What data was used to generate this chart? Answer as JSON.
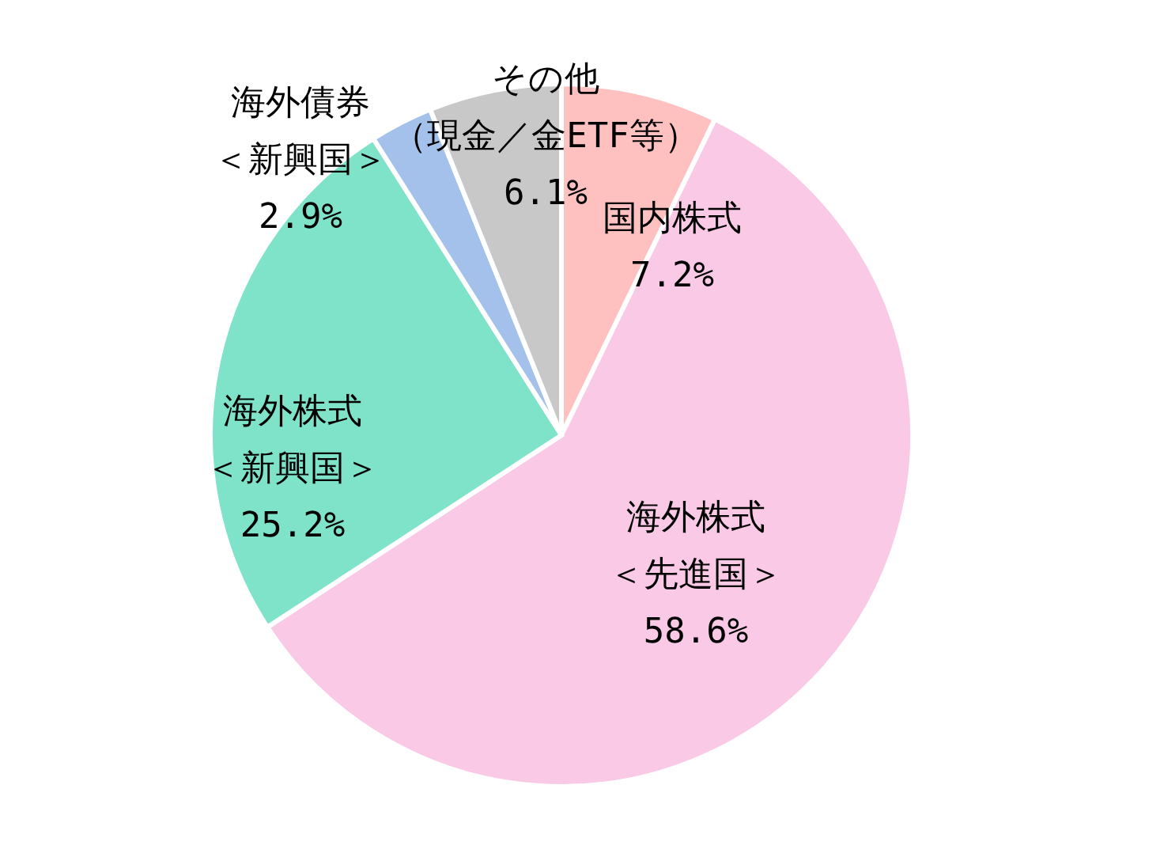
{
  "chart_data": {
    "type": "pie",
    "categories": [
      "国内株式",
      "海外株式＜先進国＞",
      "海外株式＜新興国＞",
      "海外債券＜新興国＞",
      "その他（現金／金ETF等）"
    ],
    "values": [
      7.2,
      58.6,
      25.2,
      2.9,
      6.1
    ],
    "colors": [
      "#ffc0c0",
      "#f9c9e6",
      "#7fe3c9",
      "#a3c1ea",
      "#c8c8c8"
    ],
    "value_labels": [
      "7.2%",
      "58.6%",
      "25.2%",
      "2.9%",
      "6.1%"
    ]
  }
}
